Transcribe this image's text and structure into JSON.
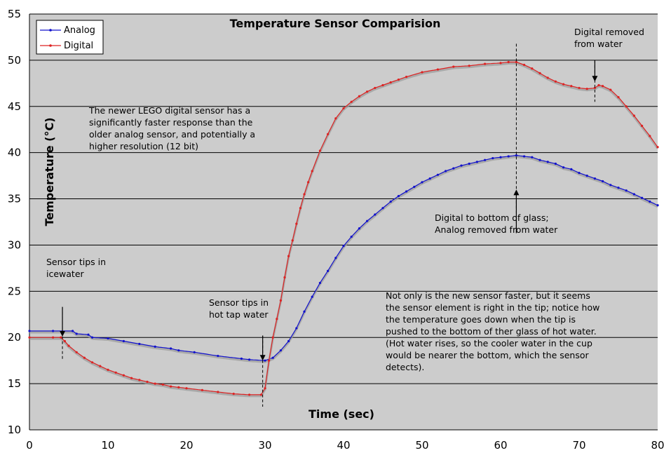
{
  "chart_data": {
    "type": "line",
    "title": "Temperature Sensor Comparision",
    "xlabel": "Time (sec)",
    "ylabel": "Temperature (°C)",
    "xlim": [
      0,
      80
    ],
    "ylim": [
      10,
      55
    ],
    "xticks": [
      0,
      10,
      20,
      30,
      40,
      50,
      60,
      70,
      80
    ],
    "yticks": [
      10,
      15,
      20,
      25,
      30,
      35,
      40,
      45,
      50,
      55
    ],
    "grid": "horizontal",
    "legend": "top-left",
    "colors": {
      "plot_background": "#cccccc",
      "grid": "#000000"
    },
    "series": [
      {
        "name": "Analog",
        "color": "#1111cc",
        "points": [
          [
            0,
            20.7
          ],
          [
            3,
            20.7
          ],
          [
            5.5,
            20.7
          ],
          [
            6,
            20.4
          ],
          [
            7.5,
            20.3
          ],
          [
            8,
            20.0
          ],
          [
            10,
            19.9
          ],
          [
            12,
            19.6
          ],
          [
            14,
            19.3
          ],
          [
            16,
            19.0
          ],
          [
            18,
            18.8
          ],
          [
            19,
            18.6
          ],
          [
            21,
            18.4
          ],
          [
            24,
            18.0
          ],
          [
            27,
            17.7
          ],
          [
            28,
            17.6
          ],
          [
            30,
            17.5
          ],
          [
            31,
            17.8
          ],
          [
            32,
            18.6
          ],
          [
            33,
            19.6
          ],
          [
            34,
            21.0
          ],
          [
            35,
            22.8
          ],
          [
            36,
            24.4
          ],
          [
            37,
            25.9
          ],
          [
            38,
            27.2
          ],
          [
            39,
            28.6
          ],
          [
            40,
            29.9
          ],
          [
            41,
            30.9
          ],
          [
            42,
            31.8
          ],
          [
            43,
            32.6
          ],
          [
            44,
            33.3
          ],
          [
            45,
            34.0
          ],
          [
            46,
            34.7
          ],
          [
            47,
            35.3
          ],
          [
            48,
            35.8
          ],
          [
            49,
            36.3
          ],
          [
            50,
            36.8
          ],
          [
            51,
            37.2
          ],
          [
            52,
            37.6
          ],
          [
            53,
            38.0
          ],
          [
            54,
            38.3
          ],
          [
            55,
            38.6
          ],
          [
            56,
            38.8
          ],
          [
            57,
            39.0
          ],
          [
            58,
            39.2
          ],
          [
            59,
            39.4
          ],
          [
            60,
            39.5
          ],
          [
            61,
            39.6
          ],
          [
            62,
            39.7
          ],
          [
            63,
            39.6
          ],
          [
            64,
            39.5
          ],
          [
            65,
            39.2
          ],
          [
            66,
            39.0
          ],
          [
            67,
            38.8
          ],
          [
            68,
            38.4
          ],
          [
            69,
            38.2
          ],
          [
            70,
            37.8
          ],
          [
            71,
            37.5
          ],
          [
            72,
            37.2
          ],
          [
            73,
            36.9
          ],
          [
            74,
            36.5
          ],
          [
            75,
            36.2
          ],
          [
            76,
            35.9
          ],
          [
            77,
            35.5
          ],
          [
            78,
            35.1
          ],
          [
            79,
            34.7
          ],
          [
            80,
            34.3
          ]
        ]
      },
      {
        "name": "Digital",
        "color": "#dd2222",
        "points": [
          [
            0,
            20.0
          ],
          [
            3,
            20.0
          ],
          [
            4,
            20.0
          ],
          [
            4.5,
            19.6
          ],
          [
            5,
            19.1
          ],
          [
            6,
            18.4
          ],
          [
            7,
            17.8
          ],
          [
            8,
            17.3
          ],
          [
            9,
            16.9
          ],
          [
            10,
            16.5
          ],
          [
            11,
            16.2
          ],
          [
            12,
            15.9
          ],
          [
            13,
            15.6
          ],
          [
            14,
            15.4
          ],
          [
            15,
            15.2
          ],
          [
            16,
            15.0
          ],
          [
            17,
            14.9
          ],
          [
            18,
            14.7
          ],
          [
            19,
            14.6
          ],
          [
            20,
            14.5
          ],
          [
            22,
            14.3
          ],
          [
            24,
            14.1
          ],
          [
            26,
            13.9
          ],
          [
            28,
            13.8
          ],
          [
            29.5,
            13.8
          ],
          [
            30,
            14.5
          ],
          [
            30.5,
            17.5
          ],
          [
            31,
            20.0
          ],
          [
            31.5,
            22.0
          ],
          [
            32,
            24.0
          ],
          [
            32.5,
            26.5
          ],
          [
            33,
            28.8
          ],
          [
            33.5,
            30.5
          ],
          [
            34,
            32.3
          ],
          [
            34.5,
            34.0
          ],
          [
            35,
            35.5
          ],
          [
            35.5,
            36.8
          ],
          [
            36,
            38.0
          ],
          [
            37,
            40.2
          ],
          [
            38,
            42.0
          ],
          [
            39,
            43.7
          ],
          [
            40,
            44.8
          ],
          [
            41,
            45.5
          ],
          [
            42,
            46.1
          ],
          [
            43,
            46.6
          ],
          [
            44,
            47.0
          ],
          [
            45,
            47.3
          ],
          [
            46,
            47.6
          ],
          [
            47,
            47.9
          ],
          [
            48,
            48.2
          ],
          [
            50,
            48.7
          ],
          [
            52,
            49.0
          ],
          [
            54,
            49.3
          ],
          [
            56,
            49.4
          ],
          [
            58,
            49.6
          ],
          [
            60,
            49.7
          ],
          [
            61,
            49.8
          ],
          [
            62,
            49.8
          ],
          [
            63,
            49.5
          ],
          [
            64,
            49.1
          ],
          [
            65,
            48.6
          ],
          [
            66,
            48.1
          ],
          [
            67,
            47.7
          ],
          [
            68,
            47.4
          ],
          [
            69,
            47.2
          ],
          [
            70,
            47.0
          ],
          [
            71,
            46.9
          ],
          [
            72,
            47.0
          ],
          [
            72.5,
            47.3
          ],
          [
            73,
            47.2
          ],
          [
            74,
            46.8
          ],
          [
            75,
            46.0
          ],
          [
            76,
            45.0
          ],
          [
            77,
            44.0
          ],
          [
            78,
            42.9
          ],
          [
            79,
            41.8
          ],
          [
            80,
            40.6
          ]
        ]
      }
    ],
    "annotations": [
      {
        "text_lines": [
          "Sensor tips in",
          "icewater"
        ],
        "arrow_x": 4.2,
        "arrow_from_y": 23.3,
        "arrow_to_y": 20.4,
        "dash_to_y": 17.6
      },
      {
        "text_lines": [
          "Sensor tips in",
          "hot tap water"
        ],
        "arrow_x": 29.7,
        "arrow_from_y": 20.2,
        "arrow_to_y": 17.8,
        "dash_to_y": 12.5
      },
      {
        "text_lines": [
          "Digital removed",
          "from water"
        ],
        "arrow_x": 72.0,
        "arrow_from_y": 50.0,
        "arrow_to_y": 48.0,
        "dash_to_y": 45.5
      },
      {
        "text_lines": [
          "Digital to bottom of glass;",
          "Analog removed from water"
        ],
        "arrow_x": 62.0,
        "arrow_from_y": 31.3,
        "arrow_to_y": 35.7,
        "dash_to_y": 52.0
      }
    ],
    "notes": [
      [
        "The newer LEGO digital sensor has a",
        "significantly faster response than the",
        "older analog sensor, and potentially a",
        "higher resolution (12 bit)"
      ],
      [
        "Not only is the new sensor faster, but it seems",
        "the sensor element is right in the tip; notice how",
        "the temperature goes down when the tip is",
        "pushed to the bottom of ther glass of hot water.",
        "(Hot water rises, so the cooler water in the cup",
        "would be nearer the bottom, which the sensor",
        "detects)."
      ]
    ]
  }
}
